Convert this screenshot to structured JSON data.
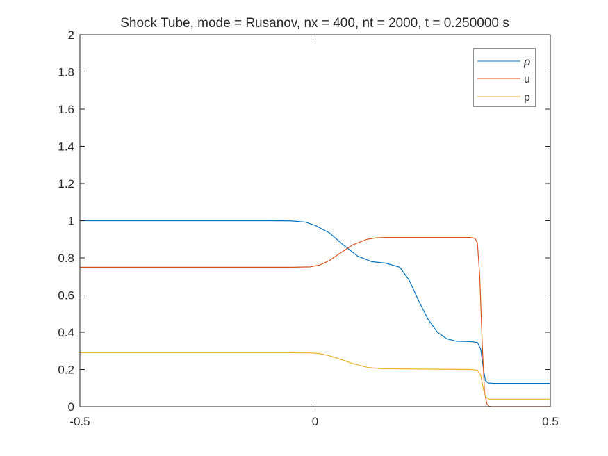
{
  "chart_data": {
    "type": "line",
    "title": "Shock Tube, mode = Rusanov, nx = 400, nt = 2000, t = 0.250000 s",
    "xlabel": "",
    "ylabel": "",
    "xlim": [
      -0.5,
      0.5
    ],
    "ylim": [
      0,
      2
    ],
    "xticks": [
      "-0.5",
      "0",
      "0.5"
    ],
    "yticks": [
      "0",
      "0.2",
      "0.4",
      "0.6",
      "0.8",
      "1",
      "1.2",
      "1.4",
      "1.6",
      "1.8",
      "2"
    ],
    "grid": false,
    "legend_position": "top-right",
    "series": [
      {
        "name": "ρ",
        "color": "#0072BD",
        "x": [
          -0.5,
          -0.1,
          -0.05,
          -0.02,
          0.0,
          0.03,
          0.06,
          0.09,
          0.12,
          0.15,
          0.18,
          0.2,
          0.22,
          0.24,
          0.26,
          0.28,
          0.3,
          0.33,
          0.345,
          0.352,
          0.358,
          0.362,
          0.368,
          0.38,
          0.5
        ],
        "y": [
          1.0,
          1.0,
          0.999,
          0.992,
          0.975,
          0.935,
          0.87,
          0.81,
          0.78,
          0.772,
          0.75,
          0.68,
          0.57,
          0.47,
          0.4,
          0.365,
          0.352,
          0.35,
          0.345,
          0.31,
          0.2,
          0.14,
          0.127,
          0.125,
          0.125
        ]
      },
      {
        "name": "u",
        "color": "#D95319",
        "x": [
          -0.5,
          -0.05,
          -0.01,
          0.01,
          0.03,
          0.05,
          0.08,
          0.11,
          0.13,
          0.15,
          0.33,
          0.34,
          0.345,
          0.35,
          0.355,
          0.36,
          0.365,
          0.37,
          0.375,
          0.5
        ],
        "y": [
          0.75,
          0.75,
          0.752,
          0.762,
          0.785,
          0.82,
          0.87,
          0.9,
          0.908,
          0.91,
          0.91,
          0.905,
          0.88,
          0.7,
          0.35,
          0.08,
          0.015,
          0.002,
          0.0,
          0.0
        ]
      },
      {
        "name": "p",
        "color": "#EDB120",
        "x": [
          -0.5,
          -0.05,
          -0.01,
          0.01,
          0.03,
          0.05,
          0.08,
          0.11,
          0.14,
          0.33,
          0.345,
          0.352,
          0.358,
          0.363,
          0.37,
          0.5
        ],
        "y": [
          0.29,
          0.29,
          0.289,
          0.285,
          0.274,
          0.258,
          0.232,
          0.212,
          0.204,
          0.2,
          0.196,
          0.17,
          0.09,
          0.05,
          0.04,
          0.04
        ]
      }
    ]
  }
}
